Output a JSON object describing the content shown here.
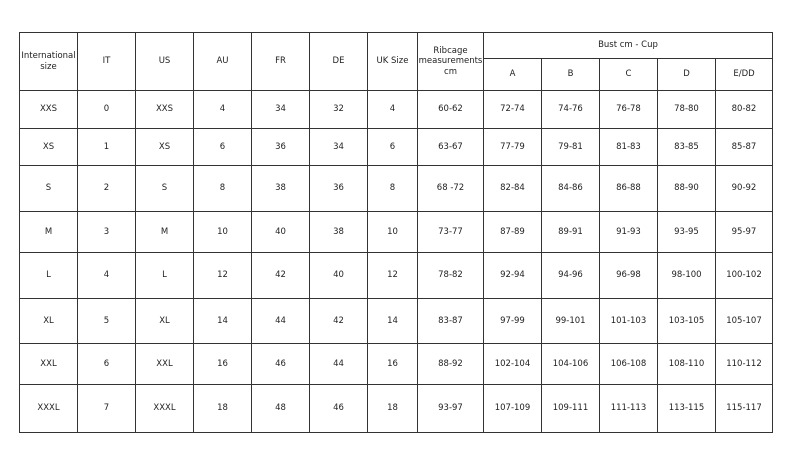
{
  "headers": {
    "international": "International size",
    "it": "IT",
    "us": "US",
    "au": "AU",
    "fr": "FR",
    "de": "DE",
    "uk": "UK Size",
    "ribcage": "Ribcage measurements cm",
    "bust": "Bust cm - Cup",
    "cups": [
      "A",
      "B",
      "C",
      "D",
      "E/DD"
    ]
  },
  "rows": [
    [
      "XXS",
      "0",
      "XXS",
      "4",
      "34",
      "32",
      "4",
      "60-62",
      "72-74",
      "74-76",
      "76-78",
      "78-80",
      "80-82"
    ],
    [
      "XS",
      "1",
      "XS",
      "6",
      "36",
      "34",
      "6",
      "63-67",
      "77-79",
      "79-81",
      "81-83",
      "83-85",
      "85-87"
    ],
    [
      "S",
      "2",
      "S",
      "8",
      "38",
      "36",
      "8",
      "68 -72",
      "82-84",
      "84-86",
      "86-88",
      "88-90",
      "90-92"
    ],
    [
      "M",
      "3",
      "M",
      "10",
      "40",
      "38",
      "10",
      "73-77",
      "87-89",
      "89-91",
      "91-93",
      "93-95",
      "95-97"
    ],
    [
      "L",
      "4",
      "L",
      "12",
      "42",
      "40",
      "12",
      "78-82",
      "92-94",
      "94-96",
      "96-98",
      "98-100",
      "100-102"
    ],
    [
      "XL",
      "5",
      "XL",
      "14",
      "44",
      "42",
      "14",
      "83-87",
      "97-99",
      "99-101",
      "101-103",
      "103-105",
      "105-107"
    ],
    [
      "XXL",
      "6",
      "XXL",
      "16",
      "46",
      "44",
      "16",
      "88-92",
      "102-104",
      "104-106",
      "106-108",
      "108-110",
      "110-112"
    ],
    [
      "XXXL",
      "7",
      "XXXL",
      "18",
      "48",
      "46",
      "18",
      "93-97",
      "107-109",
      "109-111",
      "111-113",
      "113-115",
      "115-117"
    ]
  ]
}
